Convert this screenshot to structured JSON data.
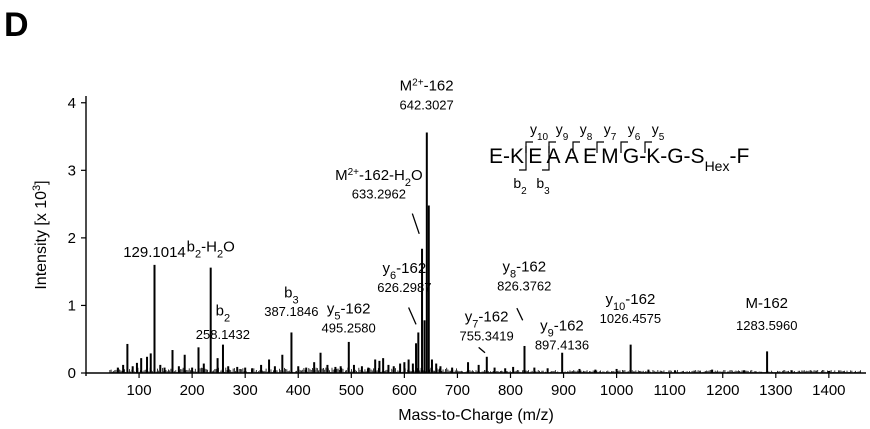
{
  "panel_label": "D",
  "chart_data": {
    "type": "line",
    "title": "",
    "xlabel": "Mass-to-Charge (m/z)",
    "ylabel": "Intensity [x 10",
    "ylabel_sup": "3",
    "ylabel_end": "]",
    "xlim": [
      0,
      1470
    ],
    "ylim": [
      0,
      4.1
    ],
    "x_ticks": [
      100,
      200,
      300,
      400,
      500,
      600,
      700,
      800,
      900,
      1000,
      1100,
      1200,
      1300,
      1400
    ],
    "y_ticks": [
      0,
      1,
      2,
      3,
      4
    ],
    "grid": false,
    "series": [
      {
        "peaks": [
          {
            "x": 60,
            "y": 0.08
          },
          {
            "x": 70,
            "y": 0.12
          },
          {
            "x": 78,
            "y": 0.43
          },
          {
            "x": 88,
            "y": 0.1
          },
          {
            "x": 96,
            "y": 0.15
          },
          {
            "x": 104,
            "y": 0.22
          },
          {
            "x": 115,
            "y": 0.24
          },
          {
            "x": 122,
            "y": 0.29
          },
          {
            "x": 129.1014,
            "y": 1.6
          },
          {
            "x": 140,
            "y": 0.12
          },
          {
            "x": 148,
            "y": 0.08
          },
          {
            "x": 163,
            "y": 0.34
          },
          {
            "x": 175,
            "y": 0.1
          },
          {
            "x": 186,
            "y": 0.27
          },
          {
            "x": 200,
            "y": 0.08
          },
          {
            "x": 212,
            "y": 0.38
          },
          {
            "x": 222,
            "y": 0.14
          },
          {
            "x": 235,
            "y": 1.56
          },
          {
            "x": 248,
            "y": 0.22
          },
          {
            "x": 258.1432,
            "y": 0.42
          },
          {
            "x": 268,
            "y": 0.1
          },
          {
            "x": 285,
            "y": 0.09
          },
          {
            "x": 300,
            "y": 0.08
          },
          {
            "x": 313,
            "y": 0.07
          },
          {
            "x": 330,
            "y": 0.12
          },
          {
            "x": 345,
            "y": 0.2
          },
          {
            "x": 356,
            "y": 0.1
          },
          {
            "x": 370,
            "y": 0.27
          },
          {
            "x": 387.1846,
            "y": 0.6
          },
          {
            "x": 400,
            "y": 0.1
          },
          {
            "x": 415,
            "y": 0.08
          },
          {
            "x": 430,
            "y": 0.16
          },
          {
            "x": 442,
            "y": 0.3
          },
          {
            "x": 455,
            "y": 0.12
          },
          {
            "x": 470,
            "y": 0.09
          },
          {
            "x": 480,
            "y": 0.1
          },
          {
            "x": 495.258,
            "y": 0.46
          },
          {
            "x": 505,
            "y": 0.12
          },
          {
            "x": 520,
            "y": 0.1
          },
          {
            "x": 532,
            "y": 0.08
          },
          {
            "x": 545,
            "y": 0.2
          },
          {
            "x": 553,
            "y": 0.18
          },
          {
            "x": 560,
            "y": 0.22
          },
          {
            "x": 570,
            "y": 0.12
          },
          {
            "x": 580,
            "y": 0.1
          },
          {
            "x": 592,
            "y": 0.14
          },
          {
            "x": 600,
            "y": 0.16
          },
          {
            "x": 608,
            "y": 0.2
          },
          {
            "x": 616,
            "y": 0.14
          },
          {
            "x": 622,
            "y": 0.44
          },
          {
            "x": 626.2987,
            "y": 0.6
          },
          {
            "x": 633.2962,
            "y": 1.84
          },
          {
            "x": 638,
            "y": 0.78
          },
          {
            "x": 642.3027,
            "y": 3.56
          },
          {
            "x": 646,
            "y": 2.48
          },
          {
            "x": 652,
            "y": 0.2
          },
          {
            "x": 660,
            "y": 0.14
          },
          {
            "x": 668,
            "y": 0.1
          },
          {
            "x": 690,
            "y": 0.08
          },
          {
            "x": 720,
            "y": 0.16
          },
          {
            "x": 740,
            "y": 0.12
          },
          {
            "x": 755.3419,
            "y": 0.24
          },
          {
            "x": 770,
            "y": 0.08
          },
          {
            "x": 790,
            "y": 0.07
          },
          {
            "x": 805,
            "y": 0.09
          },
          {
            "x": 826.3762,
            "y": 0.4
          },
          {
            "x": 845,
            "y": 0.08
          },
          {
            "x": 870,
            "y": 0.07
          },
          {
            "x": 897.4136,
            "y": 0.3
          },
          {
            "x": 930,
            "y": 0.06
          },
          {
            "x": 960,
            "y": 0.05
          },
          {
            "x": 1000,
            "y": 0.06
          },
          {
            "x": 1026.4575,
            "y": 0.42
          },
          {
            "x": 1060,
            "y": 0.05
          },
          {
            "x": 1110,
            "y": 0.04
          },
          {
            "x": 1180,
            "y": 0.05
          },
          {
            "x": 1240,
            "y": 0.04
          },
          {
            "x": 1283.596,
            "y": 0.32
          },
          {
            "x": 1330,
            "y": 0.04
          },
          {
            "x": 1400,
            "y": 0.03
          }
        ]
      }
    ],
    "annotations": [
      {
        "pre": "",
        "sub": "",
        "sup": "",
        "post": "129.1014",
        "x": 129.1014,
        "y": 1.72
      },
      {
        "pre": "b",
        "sub": "2",
        "sup": "",
        "post": "-H",
        "sub2": "2",
        "post2": "O",
        "x": 235,
        "y": 1.8
      },
      {
        "pre": "b",
        "sub": "2",
        "sup": "",
        "post": "",
        "x": 258,
        "y": 0.85,
        "value": "258.1432",
        "vy": 0.5
      },
      {
        "pre": "b",
        "sub": "3",
        "sup": "",
        "post": "",
        "x": 387,
        "y": 1.12,
        "value": "387.1846",
        "vy": 0.84
      },
      {
        "pre": "y",
        "sub": "5",
        "sup": "",
        "post": "-162",
        "x": 495,
        "y": 0.88,
        "value": "495.2580",
        "vy": 0.6
      },
      {
        "pre": "y",
        "sub": "6",
        "sup": "",
        "post": "-162",
        "x": 600,
        "y": 1.48,
        "value": "626.2987",
        "vy": 1.2
      },
      {
        "pre": "M",
        "sub": "",
        "sup": "2+",
        "post": "-162-H",
        "sub2": "2",
        "post2": "O",
        "x": 552,
        "y": 2.86,
        "value": "633.2962",
        "vy": 2.58
      },
      {
        "pre": "M",
        "sub": "",
        "sup": "2+",
        "post": "-162",
        "x": 642,
        "y": 4.18,
        "value": "642.3027",
        "vy": 3.9
      },
      {
        "pre": "y",
        "sub": "7",
        "sup": "",
        "post": "-162",
        "x": 755,
        "y": 0.76,
        "value": "755.3419",
        "vy": 0.48
      },
      {
        "pre": "y",
        "sub": "8",
        "sup": "",
        "post": "-162",
        "x": 826,
        "y": 1.5,
        "value": "826.3762",
        "vy": 1.22
      },
      {
        "pre": "y",
        "sub": "9",
        "sup": "",
        "post": "-162",
        "x": 897,
        "y": 0.63,
        "value": "897.4136",
        "vy": 0.35
      },
      {
        "pre": "y",
        "sub": "10",
        "sup": "",
        "post": "-162",
        "x": 1026,
        "y": 1.02,
        "value": "1026.4575",
        "vy": 0.74
      },
      {
        "pre": "M",
        "sub": "",
        "sup": "",
        "post": "-162",
        "x": 1283,
        "y": 0.96,
        "value": "1283.5960",
        "vy": 0.64
      }
    ],
    "leader_lines": [
      {
        "x1": 615,
        "y1": 2.36,
        "x2": 628,
        "y2": 2.06
      },
      {
        "x1": 608,
        "y1": 0.97,
        "x2": 622,
        "y2": 0.72
      },
      {
        "x1": 740,
        "y1": 0.38,
        "x2": 752,
        "y2": 0.3
      },
      {
        "x1": 812,
        "y1": 0.96,
        "x2": 823,
        "y2": 0.78
      }
    ],
    "sequence": {
      "text_parts": [
        "E-K",
        "E",
        "A",
        "A",
        "E",
        "M",
        "G-K-G-S",
        "-F"
      ],
      "hex_sub": "Hex",
      "y_ions": [
        {
          "sym": "y",
          "n": "10"
        },
        {
          "sym": "y",
          "n": "9"
        },
        {
          "sym": "y",
          "n": "8"
        },
        {
          "sym": "y",
          "n": "7"
        },
        {
          "sym": "y",
          "n": "6"
        },
        {
          "sym": "y",
          "n": "5"
        }
      ],
      "b_ions": [
        {
          "sym": "b",
          "n": "2"
        },
        {
          "sym": "b",
          "n": "3"
        }
      ]
    }
  }
}
